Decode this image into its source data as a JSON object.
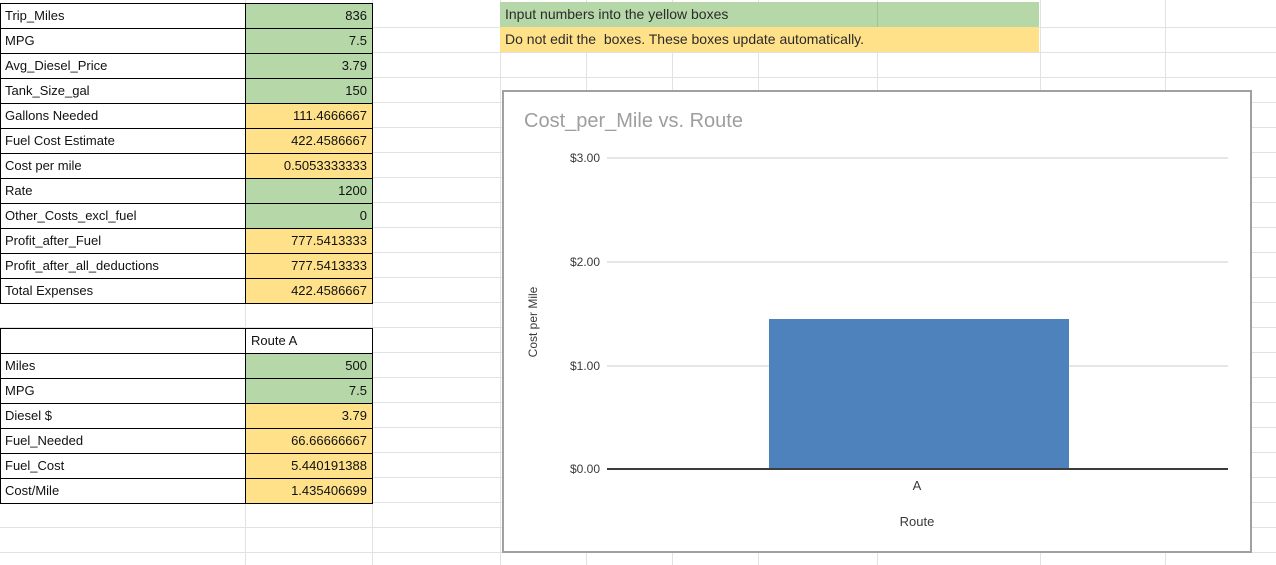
{
  "colors": {
    "input_green": "#b6d7a8",
    "auto_yellow": "#ffe18a",
    "bar_blue": "#4d82bd",
    "chart_title_gray": "#9e9e9e"
  },
  "instructions": {
    "line1": "Input numbers into the yellow boxes",
    "line2": "Do not edit the  boxes. These boxes update automatically."
  },
  "main_table": {
    "rows": [
      {
        "label": "Trip_Miles",
        "value": "836",
        "fill": "green"
      },
      {
        "label": "MPG",
        "value": "7.5",
        "fill": "green"
      },
      {
        "label": "Avg_Diesel_Price",
        "value": "3.79",
        "fill": "green"
      },
      {
        "label": "Tank_Size_gal",
        "value": "150",
        "fill": "green"
      },
      {
        "label": "Gallons Needed",
        "value": "111.4666667",
        "fill": "yellow"
      },
      {
        "label": "Fuel Cost Estimate",
        "value": "422.4586667",
        "fill": "yellow"
      },
      {
        "label": "Cost per mile",
        "value": "0.5053333333",
        "fill": "yellow"
      },
      {
        "label": "Rate",
        "value": "1200",
        "fill": "green"
      },
      {
        "label": "Other_Costs_excl_fuel",
        "value": "0",
        "fill": "green"
      },
      {
        "label": "Profit_after_Fuel",
        "value": "777.5413333",
        "fill": "yellow"
      },
      {
        "label": "Profit_after_all_deductions",
        "value": "777.5413333",
        "fill": "yellow"
      },
      {
        "label": "Total Expenses",
        "value": "422.4586667",
        "fill": "yellow"
      }
    ]
  },
  "route_table": {
    "header": "Route A",
    "rows": [
      {
        "label": "Miles",
        "value": "500",
        "fill": "green"
      },
      {
        "label": "MPG",
        "value": "7.5",
        "fill": "green"
      },
      {
        "label": "Diesel $",
        "value": "3.79",
        "fill": "yellow"
      },
      {
        "label": "Fuel_Needed",
        "value": "66.66666667",
        "fill": "yellow"
      },
      {
        "label": "Fuel_Cost",
        "value": "5.440191388",
        "fill": "yellow"
      },
      {
        "label": "Cost/Mile",
        "value": "1.435406699",
        "fill": "yellow"
      }
    ]
  },
  "chart_data": {
    "type": "bar",
    "title": "Cost_per_Mile vs. Route",
    "categories": [
      "A"
    ],
    "values": [
      1.435406699
    ],
    "xlabel": "Route",
    "ylabel": "Cost per Mile",
    "ylim": [
      0,
      3
    ],
    "yticks": [
      "$0.00",
      "$1.00",
      "$2.00",
      "$3.00"
    ],
    "grid": true,
    "legend": "none",
    "bar_color": "#4d82bd"
  }
}
